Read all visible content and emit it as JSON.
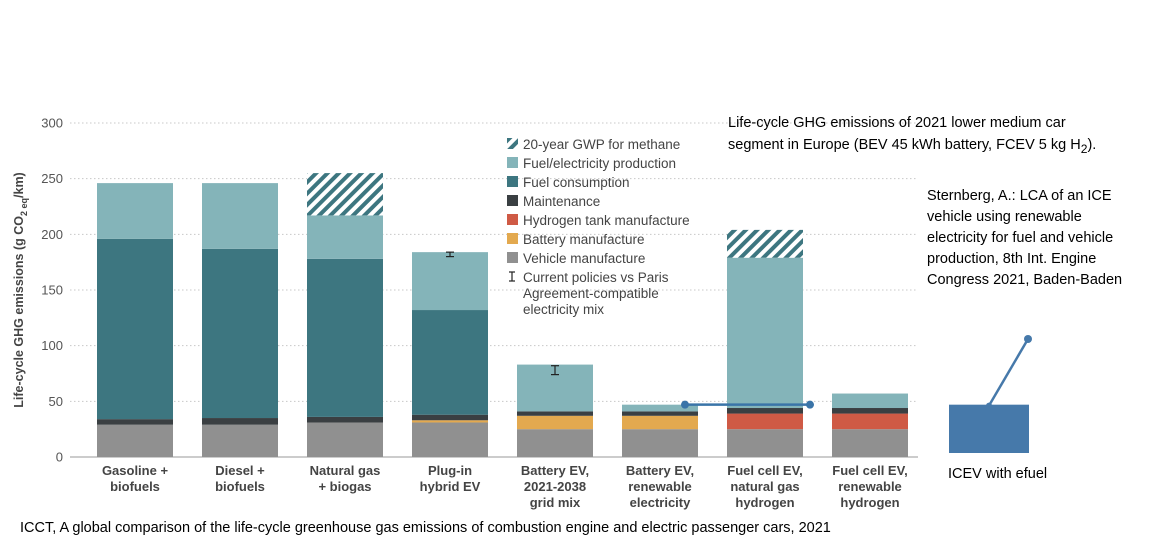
{
  "chart_data": {
    "type": "bar",
    "stacked": true,
    "ylabel": "Life-cycle GHG emissions (g CO",
    "ylabel_sub": "2 eq",
    "ylabel_end": "/km)",
    "ylim": [
      0,
      300
    ],
    "yticks": [
      "0",
      "50",
      "100",
      "150",
      "200",
      "250",
      "300"
    ],
    "grid": true,
    "legend_position": "top-center",
    "categories": [
      [
        "Gasoline +",
        "biofuels"
      ],
      [
        "Diesel +",
        "biofuels"
      ],
      [
        "Natural gas",
        "+ biogas"
      ],
      [
        "Plug-in",
        "hybrid EV"
      ],
      [
        "Battery EV,",
        "2021-2038",
        "grid mix"
      ],
      [
        "Battery EV,",
        "renewable",
        "electricity"
      ],
      [
        "Fuel cell EV,",
        "natural gas",
        "hydrogen"
      ],
      [
        "Fuel cell EV,",
        "renewable",
        "hydrogen"
      ]
    ],
    "series": [
      {
        "name": "Vehicle manufacture",
        "color": "#909090",
        "values": [
          29,
          29,
          31,
          31,
          25,
          25,
          25,
          25
        ]
      },
      {
        "name": "Battery manufacture",
        "color": "#e3a94f",
        "values": [
          0,
          0,
          0,
          2,
          12,
          12,
          0,
          0
        ]
      },
      {
        "name": "Hydrogen tank manufacture",
        "color": "#cf5a45",
        "values": [
          0,
          0,
          0,
          0,
          0,
          0,
          14,
          14
        ]
      },
      {
        "name": "Maintenance",
        "color": "#3a3f42",
        "values": [
          5,
          6,
          5,
          5,
          4,
          4,
          5,
          5
        ]
      },
      {
        "name": "Fuel consumption",
        "color": "#3d7680",
        "values": [
          162,
          152,
          142,
          94,
          0,
          0,
          0,
          0
        ]
      },
      {
        "name": "Fuel/electricity production",
        "color": "#84b4b9",
        "values": [
          50,
          59,
          39,
          52,
          42,
          6,
          135,
          13
        ]
      },
      {
        "name": "20-year GWP for methane",
        "color": "#3d7680",
        "pattern": "hatch",
        "values": [
          0,
          0,
          38,
          0,
          0,
          0,
          25,
          0
        ]
      }
    ],
    "error_bars": [
      null,
      null,
      null,
      {
        "center": 182,
        "low": 180,
        "high": 184
      },
      {
        "center": 78,
        "low": 74,
        "high": 82
      },
      null,
      null,
      null
    ],
    "legend": [
      {
        "label": "20-year GWP for methane",
        "color": "#3d7680",
        "pattern": "hatch"
      },
      {
        "label": "Fuel/electricity production",
        "color": "#84b4b9"
      },
      {
        "label": "Fuel consumption",
        "color": "#3d7680"
      },
      {
        "label": "Maintenance",
        "color": "#3a3f42"
      },
      {
        "label": "Hydrogen tank manufacture",
        "color": "#cf5a45"
      },
      {
        "label": "Battery manufacture",
        "color": "#e3a94f"
      },
      {
        "label": "Vehicle manufacture",
        "color": "#909090"
      },
      {
        "label": [
          "Current policies vs Paris",
          "Agreement-compatible",
          "electricity mix"
        ],
        "marker": "errorbar"
      }
    ],
    "overlay_line": {
      "y": 47,
      "from_category": 5,
      "to_category": 6,
      "color": "#3a74a8"
    }
  },
  "efuel": {
    "label": "ICEV with efuel",
    "bar_value": 47,
    "line_end_value": 106,
    "color": "#4679aa"
  },
  "annotations": {
    "title_line1": "Life-cycle GHG emissions of 2021 lower medium car",
    "title_line2_pre": "segment in Europe (BEV 45 kWh battery, FCEV 5 kg H",
    "title_line2_sub": "2",
    "title_line2_post": ").",
    "reference2": "Sternberg, A.: LCA of an ICE vehicle using renewable electricity for fuel and vehicle production, 8th Int. Engine Congress 2021, Baden-Baden",
    "source": "ICCT, A global comparison of the life-cycle greenhouse gas emissions of combustion engine and electric passenger cars, 2021"
  }
}
